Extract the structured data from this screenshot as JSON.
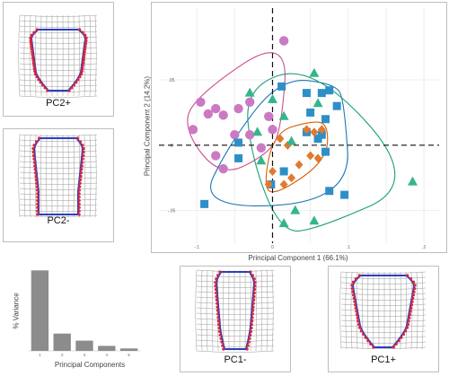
{
  "main": {
    "xlabel": "Principal Component 1 (66.1%)",
    "ylabel": "Principal Component 2 (14.2%)",
    "xticks": [
      "-.1",
      "0",
      ".1",
      ".2"
    ],
    "yticks": [
      ".05",
      "0",
      "-.05"
    ]
  },
  "tiles": {
    "pc2plus": "PC2+",
    "pc2minus": "PC2-",
    "pc1minus": "PC1-",
    "pc1plus": "PC1+"
  },
  "scree": {
    "ylabel": "% Variance",
    "xlabel": "Principal Components",
    "ticks": [
      "1",
      "2",
      "3",
      "4",
      "5"
    ]
  },
  "chart_data": [
    {
      "type": "scatter",
      "xlabel": "Principal Component 1 (66.1%)",
      "ylabel": "Principal Component 2 (14.2%)",
      "xlim": [
        -0.15,
        0.22
      ],
      "ylim": [
        -0.075,
        0.105
      ],
      "reference_lines": {
        "x": 0,
        "y": 0,
        "style": "dashed"
      },
      "grid": true,
      "series": [
        {
          "color": "#cc79c4",
          "marker": "circle",
          "points": [
            [
              -0.105,
              0.012
            ],
            [
              -0.095,
              0.033
            ],
            [
              -0.085,
              0.024
            ],
            [
              -0.075,
              0.028
            ],
            [
              -0.065,
              0.023
            ],
            [
              -0.075,
              -0.008
            ],
            [
              -0.065,
              -0.018
            ],
            [
              -0.05,
              0.008
            ],
            [
              -0.045,
              0.028
            ],
            [
              -0.03,
              0.033
            ],
            [
              -0.03,
              0.008
            ],
            [
              -0.015,
              -0.002
            ],
            [
              -0.005,
              0.022
            ],
            [
              0.0,
              0.012
            ],
            [
              0.015,
              0.08
            ]
          ]
        },
        {
          "color": "#2e8fc7",
          "marker": "square",
          "points": [
            [
              0.012,
              0.045
            ],
            [
              0.065,
              0.04
            ],
            [
              0.075,
              0.042
            ],
            [
              0.045,
              0.04
            ],
            [
              0.05,
              0.025
            ],
            [
              0.07,
              0.02
            ],
            [
              0.085,
              0.03
            ],
            [
              0.045,
              0.01
            ],
            [
              0.065,
              0.008
            ],
            [
              0.06,
              0.005
            ],
            [
              0.07,
              -0.005
            ],
            [
              0.015,
              -0.02
            ],
            [
              -0.002,
              -0.03
            ],
            [
              -0.045,
              0.002
            ],
            [
              -0.045,
              -0.01
            ],
            [
              0.075,
              -0.035
            ],
            [
              0.095,
              -0.038
            ],
            [
              -0.09,
              -0.045
            ]
          ]
        },
        {
          "color": "#e07a2f",
          "marker": "diamond",
          "points": [
            [
              0.065,
              0.012
            ],
            [
              0.055,
              0.01
            ],
            [
              0.045,
              0.012
            ],
            [
              0.05,
              -0.008
            ],
            [
              0.06,
              -0.01
            ],
            [
              0.035,
              -0.015
            ],
            [
              0.02,
              0.0
            ],
            [
              0.01,
              0.005
            ],
            [
              0.0,
              -0.02
            ],
            [
              -0.005,
              -0.03
            ],
            [
              0.015,
              -0.03
            ],
            [
              0.025,
              -0.025
            ]
          ]
        },
        {
          "color": "#35b58d",
          "marker": "triangle",
          "points": [
            [
              -0.03,
              0.04
            ],
            [
              0.0,
              0.035
            ],
            [
              0.015,
              0.022
            ],
            [
              -0.02,
              0.01
            ],
            [
              -0.015,
              -0.012
            ],
            [
              0.025,
              0.003
            ],
            [
              0.06,
              0.032
            ],
            [
              0.03,
              -0.05
            ],
            [
              0.015,
              -0.06
            ],
            [
              0.055,
              -0.058
            ],
            [
              0.055,
              0.055
            ],
            [
              0.185,
              -0.028
            ]
          ]
        }
      ]
    },
    {
      "type": "bar",
      "ylabel": "% Variance",
      "xlabel": "Principal Components",
      "categories": [
        "1",
        "2",
        "3",
        "4",
        "5"
      ],
      "values": [
        66.1,
        14.2,
        8.4,
        4.1,
        2.0
      ],
      "color": "#8c8c8c"
    }
  ]
}
